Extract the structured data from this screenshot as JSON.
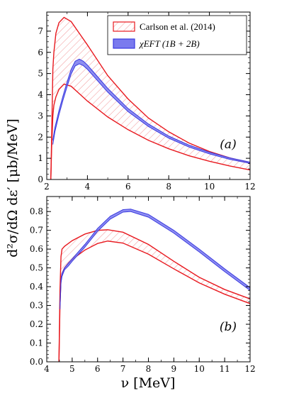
{
  "figure": {
    "ylabel": "d²σ/dΩ dε′  [μb/MeV]",
    "xlabel": "ν  [MeV]"
  },
  "colors": {
    "carlson": "#e8191f",
    "carlson_hatch": "#f08a8c",
    "chieft_band": "#7a7aee",
    "chieft_line": "#3a3ae0",
    "axes": "#000000"
  },
  "legend": {
    "items": [
      {
        "label": "Carlson et al. (2014)",
        "style": "hatched-red-box"
      },
      {
        "label": "χEFT (1B + 2B)",
        "style": "filled-blue-box"
      }
    ],
    "placement": "top-right of panel (a)"
  },
  "chart_data": [
    {
      "type": "area",
      "panel_label": "(a)",
      "xlim": [
        2,
        12
      ],
      "ylim": [
        0,
        7.9
      ],
      "xticks": [
        2,
        4,
        6,
        8,
        10,
        12
      ],
      "yticks": [
        0,
        1,
        2,
        3,
        4,
        5,
        6,
        7
      ],
      "series": [
        {
          "name": "Carlson et al. (2014)",
          "kind": "hatched-band",
          "x": [
            2.2,
            2.24,
            2.3,
            2.35,
            2.45,
            2.6,
            2.85,
            3.2,
            3.6,
            4,
            5,
            6,
            7,
            8,
            9,
            10,
            11,
            12
          ],
          "upper": [
            0,
            2.0,
            5.2,
            6.0,
            6.9,
            7.4,
            7.65,
            7.45,
            6.9,
            6.35,
            4.9,
            3.8,
            2.9,
            2.25,
            1.72,
            1.32,
            1.02,
            0.78
          ],
          "lower": [
            0,
            1.5,
            3.0,
            3.5,
            3.9,
            4.25,
            4.5,
            4.4,
            4.05,
            3.7,
            2.95,
            2.35,
            1.85,
            1.45,
            1.12,
            0.86,
            0.64,
            0.45
          ]
        },
        {
          "name": "χEFT (1B + 2B)",
          "kind": "filled-band",
          "x": [
            2.3,
            2.4,
            2.6,
            2.8,
            3,
            3.2,
            3.4,
            3.6,
            3.8,
            4,
            4.5,
            5,
            6,
            7,
            8,
            9,
            10,
            11,
            12
          ],
          "upper": [
            1.85,
            2.45,
            3.25,
            3.95,
            4.6,
            5.2,
            5.58,
            5.68,
            5.58,
            5.4,
            4.85,
            4.3,
            3.35,
            2.62,
            2.05,
            1.62,
            1.29,
            1.02,
            0.82
          ],
          "lower": [
            1.65,
            2.25,
            3.05,
            3.75,
            4.38,
            4.98,
            5.36,
            5.46,
            5.37,
            5.2,
            4.66,
            4.12,
            3.2,
            2.5,
            1.95,
            1.53,
            1.21,
            0.95,
            0.76
          ]
        }
      ]
    },
    {
      "type": "area",
      "panel_label": "(b)",
      "xlim": [
        4,
        12
      ],
      "ylim": [
        0,
        0.88
      ],
      "xticks": [
        4,
        5,
        6,
        7,
        8,
        9,
        10,
        11,
        12
      ],
      "yticks": [
        0.0,
        0.1,
        0.2,
        0.3,
        0.4,
        0.5,
        0.6,
        0.7,
        0.8
      ],
      "series": [
        {
          "name": "Carlson et al. (2014)",
          "kind": "hatched-band",
          "x": [
            4.48,
            4.52,
            4.56,
            4.6,
            4.7,
            4.85,
            5,
            5.5,
            6,
            6.4,
            7,
            8,
            9,
            10,
            11,
            12
          ],
          "upper": [
            0,
            0.38,
            0.56,
            0.6,
            0.615,
            0.63,
            0.645,
            0.68,
            0.7,
            0.703,
            0.69,
            0.625,
            0.535,
            0.45,
            0.385,
            0.335
          ],
          "lower": [
            0,
            0.3,
            0.44,
            0.47,
            0.5,
            0.525,
            0.545,
            0.595,
            0.63,
            0.643,
            0.632,
            0.573,
            0.495,
            0.42,
            0.36,
            0.31
          ]
        },
        {
          "name": "χEFT (1B + 2B)",
          "kind": "filled-band",
          "x": [
            4.52,
            4.56,
            4.6,
            4.7,
            4.85,
            5,
            5.5,
            6,
            6.5,
            7,
            7.3,
            8,
            9,
            10,
            11,
            12
          ],
          "upper": [
            0.3,
            0.44,
            0.47,
            0.5,
            0.525,
            0.548,
            0.625,
            0.71,
            0.775,
            0.81,
            0.813,
            0.785,
            0.7,
            0.6,
            0.495,
            0.395
          ],
          "lower": [
            0.28,
            0.42,
            0.455,
            0.49,
            0.51,
            0.535,
            0.61,
            0.695,
            0.76,
            0.797,
            0.8,
            0.77,
            0.685,
            0.585,
            0.48,
            0.38
          ]
        }
      ]
    }
  ]
}
